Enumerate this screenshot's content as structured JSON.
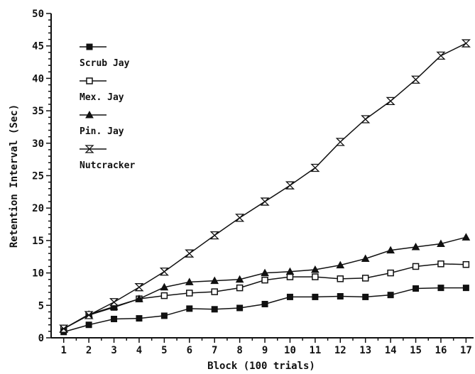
{
  "chart_data": {
    "type": "line",
    "title": "",
    "xlabel": "Block (100 trials)",
    "ylabel": "Retention Interval (Sec)",
    "x": [
      1,
      2,
      3,
      4,
      5,
      6,
      7,
      8,
      9,
      10,
      11,
      12,
      13,
      14,
      15,
      16,
      17
    ],
    "xlim": [
      0.5,
      17.3
    ],
    "ylim": [
      0,
      50
    ],
    "x_ticks": [
      "1",
      "2",
      "3",
      "4",
      "5",
      "6",
      "7",
      "8",
      "9",
      "10",
      "11",
      "12",
      "13",
      "14",
      "15",
      "16",
      "17"
    ],
    "y_ticks": [
      "0",
      "5",
      "10",
      "15",
      "20",
      "25",
      "30",
      "35",
      "40",
      "45",
      "50"
    ],
    "grid": false,
    "legend_position": "upper-left",
    "series": [
      {
        "name": "Scrub Jay",
        "marker": "filled-square",
        "values": [
          0.9,
          2.0,
          2.9,
          3.0,
          3.4,
          4.5,
          4.4,
          4.6,
          5.2,
          6.3,
          6.3,
          6.4,
          6.3,
          6.6,
          7.6,
          7.7,
          7.7
        ]
      },
      {
        "name": "Mex. Jay",
        "marker": "open-square",
        "values": [
          1.4,
          3.5,
          4.7,
          6.0,
          6.5,
          6.9,
          7.1,
          7.7,
          8.9,
          9.4,
          9.4,
          9.1,
          9.2,
          10.0,
          11.0,
          11.4,
          11.3
        ]
      },
      {
        "name": "Pin. Jay",
        "marker": "filled-triangle",
        "values": [
          1.4,
          3.6,
          4.8,
          6.0,
          7.8,
          8.6,
          8.8,
          9.0,
          10.0,
          10.2,
          10.5,
          11.2,
          12.2,
          13.5,
          14.0,
          14.5,
          15.5
        ]
      },
      {
        "name": "Nutcracker",
        "marker": "hourglass",
        "values": [
          1.4,
          3.5,
          5.5,
          7.8,
          10.2,
          13.0,
          15.8,
          18.5,
          21.0,
          23.5,
          26.2,
          30.2,
          33.7,
          36.5,
          39.8,
          43.5,
          45.4
        ]
      }
    ]
  }
}
